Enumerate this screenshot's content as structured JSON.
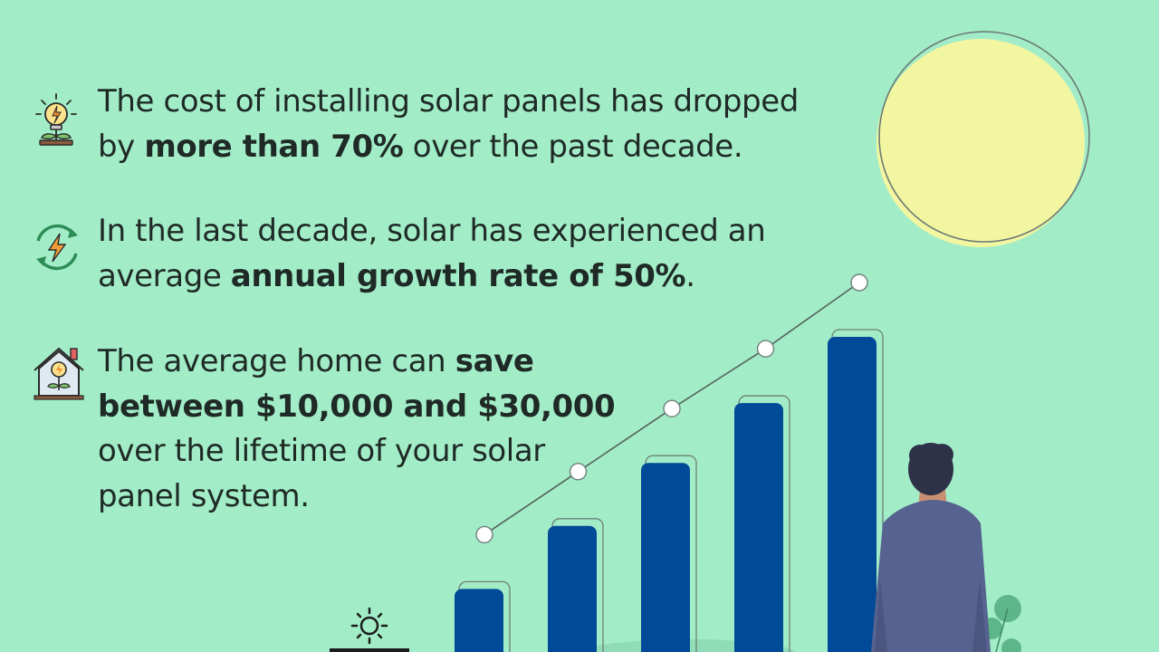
{
  "background_color": "#a2edc8",
  "facts": [
    {
      "icon": "lightbulb-plant-icon",
      "lines": [
        [
          {
            "text": "The cost of installing solar panels has dropped",
            "bold": false
          }
        ],
        [
          {
            "text": "by ",
            "bold": false
          },
          {
            "text": "more than 70%",
            "bold": true
          },
          {
            "text": " over the past decade.",
            "bold": false
          }
        ]
      ]
    },
    {
      "icon": "renewable-energy-cycle-icon",
      "lines": [
        [
          {
            "text": "In the last decade, solar has experienced an",
            "bold": false
          }
        ],
        [
          {
            "text": "average ",
            "bold": false
          },
          {
            "text": "annual growth rate of 50%",
            "bold": true
          },
          {
            "text": ".",
            "bold": false
          }
        ]
      ]
    },
    {
      "icon": "eco-house-icon",
      "lines": [
        [
          {
            "text": "The average home can ",
            "bold": false
          },
          {
            "text": "save",
            "bold": true
          }
        ],
        [
          {
            "text": "between $10,000 and $30,000",
            "bold": true
          }
        ],
        [
          {
            "text": "over the lifetime of your solar",
            "bold": false
          }
        ],
        [
          {
            "text": "panel system.",
            "bold": false
          }
        ]
      ]
    }
  ],
  "illustration": {
    "growth_bars": [
      0.2,
      0.4,
      0.6,
      0.79,
      1.0
    ],
    "bar_color": "#004a98",
    "sun_fill": "#f3f6a0",
    "sun_outline": "#6b7a76",
    "trend_point_color": "#ffffff",
    "person_suit_color": "#56628f",
    "person_hair_color": "#2e3248",
    "plant_color": "#5db58a",
    "small_sun_icon": "sun-icon"
  }
}
